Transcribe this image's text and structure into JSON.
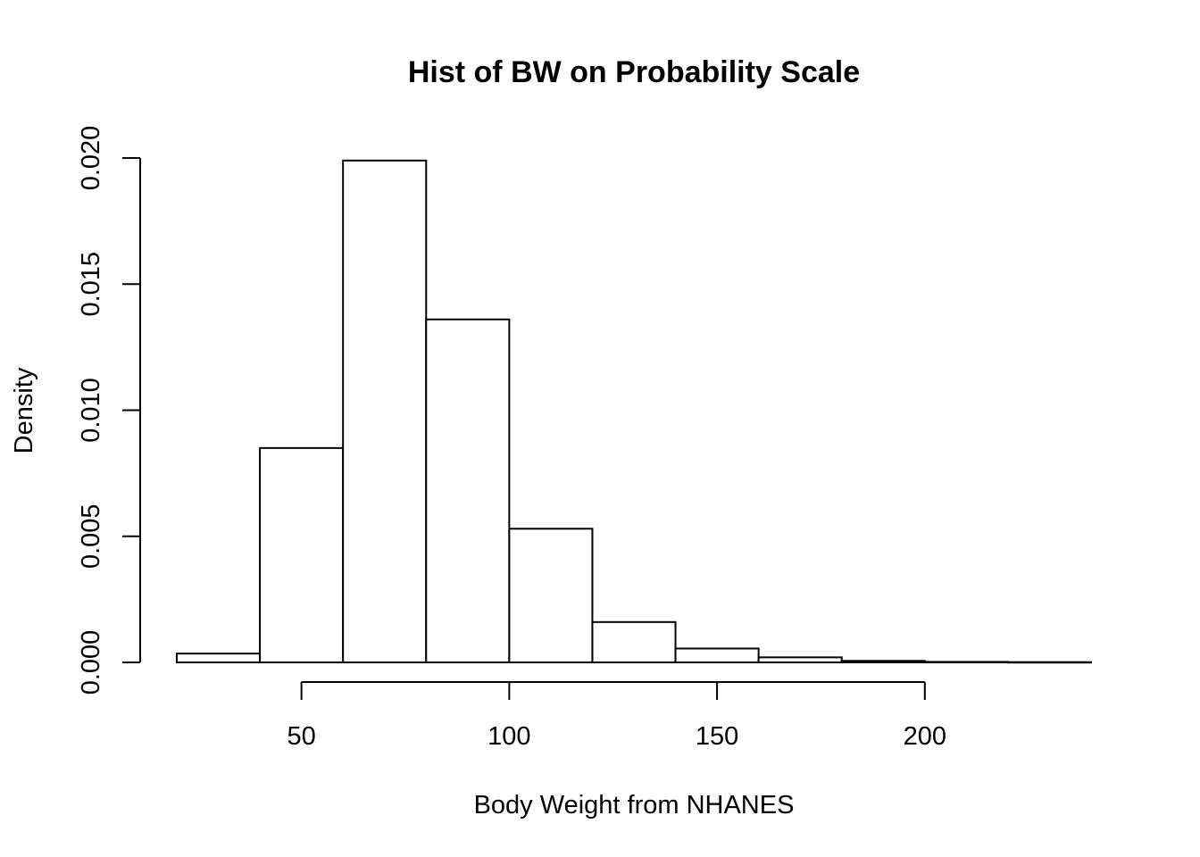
{
  "chart_data": {
    "type": "histogram",
    "title": "Hist of BW on Probability Scale",
    "xlabel": "Body Weight from NHANES",
    "ylabel": "Density",
    "bins": [
      {
        "x0": 20,
        "x1": 40,
        "density": 0.00035
      },
      {
        "x0": 40,
        "x1": 60,
        "density": 0.0085
      },
      {
        "x0": 60,
        "x1": 80,
        "density": 0.0199
      },
      {
        "x0": 80,
        "x1": 100,
        "density": 0.0136
      },
      {
        "x0": 100,
        "x1": 120,
        "density": 0.0053
      },
      {
        "x0": 120,
        "x1": 140,
        "density": 0.0016
      },
      {
        "x0": 140,
        "x1": 160,
        "density": 0.00055
      },
      {
        "x0": 160,
        "x1": 180,
        "density": 0.0002
      },
      {
        "x0": 180,
        "x1": 200,
        "density": 6e-05
      },
      {
        "x0": 200,
        "x1": 220,
        "density": 2e-05
      },
      {
        "x0": 220,
        "x1": 240,
        "density": 1e-05
      }
    ],
    "x_ticks": [
      50,
      100,
      150,
      200
    ],
    "x_tick_labels": [
      "50",
      "100",
      "150",
      "200"
    ],
    "y_ticks": [
      0,
      0.005,
      0.01,
      0.015,
      0.02
    ],
    "y_tick_labels": [
      "0.000",
      "0.005",
      "0.010",
      "0.015",
      "0.020"
    ],
    "xlim": [
      20,
      240
    ],
    "ylim": [
      0,
      0.02
    ],
    "grid": false,
    "legend": false
  }
}
